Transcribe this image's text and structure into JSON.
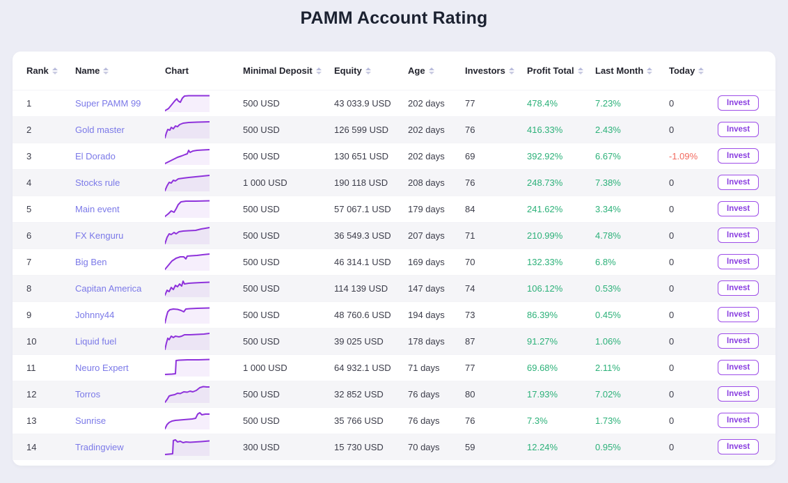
{
  "page": {
    "title": "PAMM Account Rating"
  },
  "colors": {
    "page_background": "#ECEDF5",
    "card_background": "#FFFFFF",
    "row_alt_background": "#F5F5F8",
    "name_link": "#7B79E8",
    "positive": "#2CB179",
    "negative": "#F2695E",
    "spark_line": "#8E32DB",
    "invest_border": "#9D4CE8"
  },
  "table": {
    "columns": [
      {
        "key": "rank",
        "label": "Rank",
        "sortable": true
      },
      {
        "key": "name",
        "label": "Name",
        "sortable": true
      },
      {
        "key": "chart",
        "label": "Chart",
        "sortable": false
      },
      {
        "key": "minimal_deposit",
        "label": "Minimal Deposit",
        "sortable": true
      },
      {
        "key": "equity",
        "label": "Equity",
        "sortable": true
      },
      {
        "key": "age",
        "label": "Age",
        "sortable": true
      },
      {
        "key": "investors",
        "label": "Investors",
        "sortable": true
      },
      {
        "key": "profit_total",
        "label": "Profit Total",
        "sortable": true
      },
      {
        "key": "last_month",
        "label": "Last Month",
        "sortable": true
      },
      {
        "key": "today",
        "label": "Today",
        "sortable": true
      },
      {
        "key": "invest",
        "label": "",
        "sortable": false
      }
    ],
    "invest_label": "Invest",
    "rows": [
      {
        "rank": "1",
        "name": "Super PAMM 99",
        "minimal_deposit": "500 USD",
        "equity": "43 033.9 USD",
        "age": "202 days",
        "investors": "77",
        "profit_total": "478.4%",
        "last_month": "7.23%",
        "today": "0",
        "today_negative": false,
        "spark": "0,26 5,23 10,17 14,12 17,9 19,12 22,14 25,8 28,5 34,4.5 64,4.5"
      },
      {
        "rank": "2",
        "name": "Gold master",
        "minimal_deposit": "500 USD",
        "equity": "126 599 USD",
        "age": "202 days",
        "investors": "76",
        "profit_total": "416.33%",
        "last_month": "2.43%",
        "today": "0",
        "today_negative": false,
        "spark": "0,27 2,20 4,15 7,16 9,12 12,14 15,10 18,11 21,8 26,6 34,5 46,4.5 64,4"
      },
      {
        "rank": "3",
        "name": "El Dorado",
        "minimal_deposit": "500 USD",
        "equity": "130 651 USD",
        "age": "202 days",
        "investors": "69",
        "profit_total": "392.92%",
        "last_month": "6.67%",
        "today": "-1.09%",
        "today_negative": true,
        "spark": "0,26 6,23 12,20 18,17 24,15 29,13 32,12 34,7 36,10 40,8 46,7 54,6.5 64,6"
      },
      {
        "rank": "4",
        "name": "Stocks rule",
        "minimal_deposit": "1 000 USD",
        "equity": "190 118 USD",
        "age": "208 days",
        "investors": "76",
        "profit_total": "248.73%",
        "last_month": "7.38%",
        "today": "0",
        "today_negative": false,
        "spark": "0,27 3,20 6,15 9,16 12,12 15,13 19,10 26,9 34,8 44,7 54,6 64,5"
      },
      {
        "rank": "5",
        "name": "Main event",
        "minimal_deposit": "500 USD",
        "equity": "57 067.1 USD",
        "age": "179 days",
        "investors": "84",
        "profit_total": "241.62%",
        "last_month": "3.34%",
        "today": "0",
        "today_negative": false,
        "spark": "0,26 5,22 9,18 13,20 16,15 19,9 23,5 30,4 44,4 64,3.5"
      },
      {
        "rank": "6",
        "name": "FX Kenguru",
        "minimal_deposit": "500 USD",
        "equity": "36 549.3 USD",
        "age": "207 days",
        "investors": "71",
        "profit_total": "210.99%",
        "last_month": "4.78%",
        "today": "0",
        "today_negative": false,
        "spark": "0,27 3,18 6,13 9,14 13,11 16,13 20,10 26,9 34,8.5 44,8 52,6 58,5 64,4"
      },
      {
        "rank": "7",
        "name": "Big Ben",
        "minimal_deposit": "500 USD",
        "equity": "46 314.1 USD",
        "age": "169 days",
        "investors": "70",
        "profit_total": "132.33%",
        "last_month": "6.8%",
        "today": "0",
        "today_negative": false,
        "spark": "0,26 5,20 10,14 16,10 22,8 27,8 30,11 32,7 38,6.5 46,6 54,5 64,4"
      },
      {
        "rank": "8",
        "name": "Capitan America",
        "minimal_deposit": "500 USD",
        "equity": "114 139 USD",
        "age": "147 days",
        "investors": "74",
        "profit_total": "106.12%",
        "last_month": "0.53%",
        "today": "0",
        "today_negative": false,
        "spark": "0,25 3,18 6,20 9,14 12,17 15,11 18,13 21,9 24,12 26,5 28,9 34,8 42,7.5 52,7 64,6.5"
      },
      {
        "rank": "9",
        "name": "Johnny44",
        "minimal_deposit": "500 USD",
        "equity": "48 760.6 USD",
        "age": "194 days",
        "investors": "73",
        "profit_total": "86.39%",
        "last_month": "0.45%",
        "today": "0",
        "today_negative": false,
        "spark": "0,27 2,18 4,11 7,8 12,7 18,7.5 23,9 27,11 30,7 36,6.5 46,6 64,5.5"
      },
      {
        "rank": "10",
        "name": "Liquid fuel",
        "minimal_deposit": "500 USD",
        "equity": "39 025 USD",
        "age": "178 days",
        "investors": "87",
        "profit_total": "91.27%",
        "last_month": "1.06%",
        "today": "0",
        "today_negative": false,
        "spark": "0,27 2,18 4,11 6,13 9,8 12,10 15,8 20,9 24,8 28,6 36,6 46,5.5 56,5 64,4"
      },
      {
        "rank": "11",
        "name": "Neuro Expert",
        "minimal_deposit": "1 000 USD",
        "equity": "64 932.1 USD",
        "age": "71 days",
        "investors": "77",
        "profit_total": "69.68%",
        "last_month": "2.11%",
        "today": "0",
        "today_negative": false,
        "spark": "0,25 10,24.5 15,24 16,5 20,4.5 32,4 48,4 64,3.5"
      },
      {
        "rank": "12",
        "name": "Torros",
        "minimal_deposit": "500 USD",
        "equity": "32 852 USD",
        "age": "76 days",
        "investors": "80",
        "profit_total": "17.93%",
        "last_month": "7.02%",
        "today": "0",
        "today_negative": false,
        "spark": "0,27 3,23 6,18 9,17 14,16 18,14 22,14.5 27,12 32,12.5 36,11 40,12 45,10 50,6 55,4.5 60,5 64,5"
      },
      {
        "rank": "13",
        "name": "Sunrise",
        "minimal_deposit": "500 USD",
        "equity": "35 766 USD",
        "age": "76 days",
        "investors": "76",
        "profit_total": "7.3%",
        "last_month": "1.73%",
        "today": "0",
        "today_negative": false,
        "spark": "0,27 3,21 6,18 10,16 15,15 21,14.5 27,14 33,13.5 39,13 44,12 47,6 50,4 53,7 58,6 64,6"
      },
      {
        "rank": "14",
        "name": "Tradingview",
        "minimal_deposit": "300 USD",
        "equity": "15 730 USD",
        "age": "70 days",
        "investors": "59",
        "profit_total": "12.24%",
        "last_month": "0.95%",
        "today": "0",
        "today_negative": false,
        "spark": "0,26 6,25.5 11,25 12,6 15,5 18,8 22,7 26,9 30,8 36,8.5 44,8 52,7.5 58,7 64,6.5"
      }
    ]
  }
}
